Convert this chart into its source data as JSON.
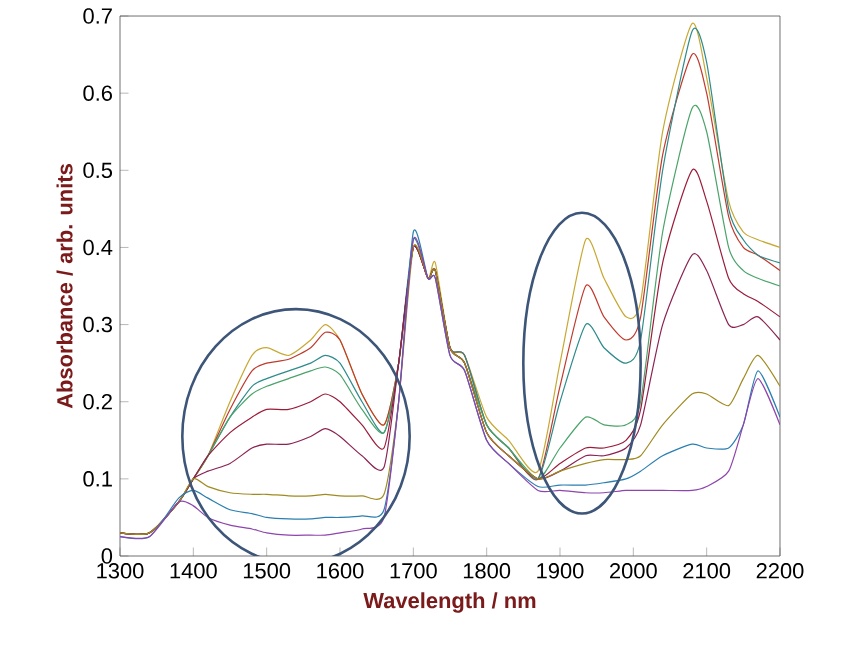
{
  "chart_data": {
    "type": "line",
    "xlabel": "Wavelength / nm",
    "ylabel": "Absorbance / arb. units",
    "xlim": [
      1300,
      2200
    ],
    "xticks": [
      1300,
      1400,
      1500,
      1600,
      1700,
      1800,
      1900,
      2000,
      2100,
      2200
    ],
    "ylim": [
      0,
      0.7
    ],
    "yticks": [
      0,
      0.1,
      0.2,
      0.3,
      0.4,
      0.5,
      0.6,
      0.7
    ],
    "grid": false,
    "marker": "none",
    "line_style": "solid",
    "x": [
      1300,
      1340,
      1380,
      1400,
      1420,
      1450,
      1480,
      1500,
      1530,
      1560,
      1580,
      1600,
      1630,
      1660,
      1680,
      1700,
      1720,
      1730,
      1750,
      1770,
      1800,
      1830,
      1870,
      1900,
      1935,
      1960,
      1990,
      2010,
      2040,
      2080,
      2100,
      2130,
      2150,
      2170,
      2200
    ],
    "series": [
      {
        "color": "#c8a832",
        "values": [
          0.03,
          0.03,
          0.07,
          0.1,
          0.13,
          0.2,
          0.26,
          0.27,
          0.26,
          0.28,
          0.3,
          0.28,
          0.21,
          0.17,
          0.25,
          0.4,
          0.36,
          0.38,
          0.27,
          0.26,
          0.18,
          0.15,
          0.11,
          0.25,
          0.41,
          0.36,
          0.31,
          0.33,
          0.55,
          0.69,
          0.62,
          0.46,
          0.42,
          0.41,
          0.4
        ]
      },
      {
        "color": "#c0392b",
        "values": [
          0.03,
          0.03,
          0.07,
          0.1,
          0.13,
          0.19,
          0.24,
          0.25,
          0.255,
          0.27,
          0.29,
          0.28,
          0.21,
          0.17,
          0.25,
          0.4,
          0.36,
          0.37,
          0.27,
          0.26,
          0.17,
          0.14,
          0.1,
          0.22,
          0.35,
          0.31,
          0.28,
          0.31,
          0.52,
          0.65,
          0.6,
          0.44,
          0.4,
          0.39,
          0.37
        ]
      },
      {
        "color": "#2e8b8b",
        "values": [
          0.03,
          0.03,
          0.07,
          0.1,
          0.13,
          0.18,
          0.22,
          0.23,
          0.24,
          0.25,
          0.26,
          0.25,
          0.2,
          0.16,
          0.25,
          0.41,
          0.36,
          0.37,
          0.27,
          0.26,
          0.17,
          0.14,
          0.1,
          0.2,
          0.3,
          0.27,
          0.25,
          0.28,
          0.5,
          0.68,
          0.64,
          0.45,
          0.41,
          0.39,
          0.38
        ]
      },
      {
        "color": "#4aa36a",
        "values": [
          0.03,
          0.03,
          0.07,
          0.1,
          0.13,
          0.18,
          0.21,
          0.22,
          0.23,
          0.24,
          0.245,
          0.235,
          0.19,
          0.16,
          0.25,
          0.4,
          0.36,
          0.37,
          0.27,
          0.25,
          0.17,
          0.14,
          0.1,
          0.14,
          0.18,
          0.17,
          0.17,
          0.2,
          0.42,
          0.58,
          0.55,
          0.4,
          0.37,
          0.36,
          0.35
        ]
      },
      {
        "color": "#9b1b3a",
        "values": [
          0.03,
          0.03,
          0.07,
          0.1,
          0.13,
          0.16,
          0.18,
          0.19,
          0.19,
          0.2,
          0.21,
          0.2,
          0.17,
          0.14,
          0.25,
          0.4,
          0.36,
          0.37,
          0.27,
          0.25,
          0.16,
          0.13,
          0.1,
          0.12,
          0.14,
          0.14,
          0.15,
          0.19,
          0.38,
          0.5,
          0.46,
          0.36,
          0.34,
          0.33,
          0.31
        ]
      },
      {
        "color": "#8b2252",
        "values": [
          0.03,
          0.03,
          0.07,
          0.1,
          0.11,
          0.12,
          0.14,
          0.145,
          0.145,
          0.155,
          0.165,
          0.155,
          0.13,
          0.115,
          0.25,
          0.4,
          0.36,
          0.37,
          0.27,
          0.25,
          0.16,
          0.13,
          0.1,
          0.11,
          0.13,
          0.13,
          0.14,
          0.17,
          0.3,
          0.39,
          0.37,
          0.3,
          0.3,
          0.31,
          0.28
        ]
      },
      {
        "color": "#a08a20",
        "values": [
          0.03,
          0.03,
          0.07,
          0.1,
          0.09,
          0.082,
          0.08,
          0.08,
          0.078,
          0.078,
          0.08,
          0.078,
          0.078,
          0.08,
          0.2,
          0.4,
          0.36,
          0.37,
          0.27,
          0.25,
          0.16,
          0.13,
          0.1,
          0.11,
          0.12,
          0.125,
          0.125,
          0.13,
          0.17,
          0.21,
          0.21,
          0.195,
          0.23,
          0.26,
          0.22
        ]
      },
      {
        "color": "#2a7fb0",
        "values": [
          0.025,
          0.025,
          0.075,
          0.085,
          0.075,
          0.06,
          0.055,
          0.05,
          0.048,
          0.048,
          0.05,
          0.05,
          0.052,
          0.06,
          0.2,
          0.42,
          0.36,
          0.36,
          0.26,
          0.24,
          0.15,
          0.12,
          0.09,
          0.092,
          0.092,
          0.095,
          0.1,
          0.11,
          0.13,
          0.145,
          0.14,
          0.14,
          0.17,
          0.24,
          0.18
        ]
      },
      {
        "color": "#8e44ad",
        "values": [
          0.025,
          0.025,
          0.07,
          0.065,
          0.05,
          0.04,
          0.035,
          0.03,
          0.027,
          0.027,
          0.027,
          0.03,
          0.035,
          0.05,
          0.2,
          0.41,
          0.36,
          0.36,
          0.26,
          0.24,
          0.15,
          0.12,
          0.085,
          0.085,
          0.082,
          0.082,
          0.085,
          0.085,
          0.085,
          0.085,
          0.09,
          0.11,
          0.17,
          0.23,
          0.17
        ]
      }
    ]
  }
}
